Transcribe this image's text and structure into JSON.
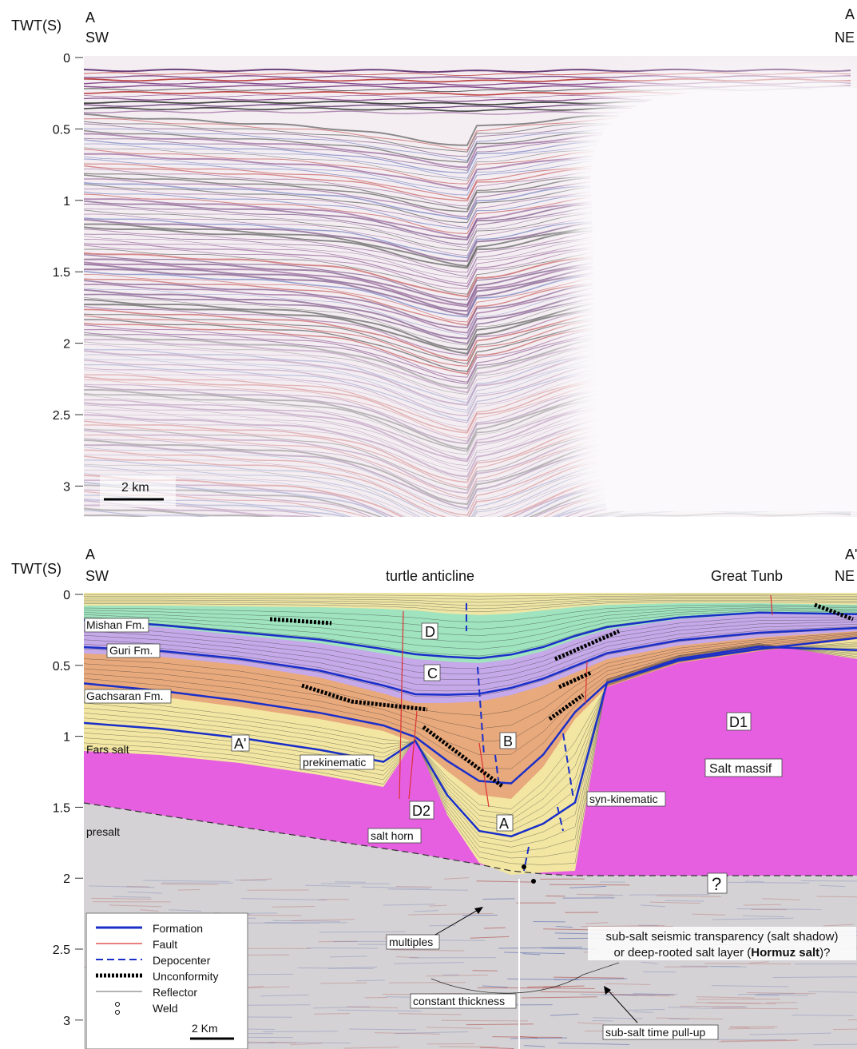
{
  "top_panel": {
    "axis_label": "TWT(S)",
    "left_end": "A",
    "left_dir": "SW",
    "right_end": "A",
    "right_dir": "NE",
    "yticks": [
      0,
      0.5,
      1,
      1.5,
      2,
      2.5,
      3
    ],
    "scale_bar": "2 km"
  },
  "bottom_panel": {
    "axis_label": "TWT(S)",
    "left_end": "A",
    "left_dir": "SW",
    "right_end": "A'",
    "right_dir": "NE",
    "yticks": [
      0,
      0.5,
      1,
      1.5,
      2,
      2.5,
      3
    ],
    "headings": [
      "turtle anticline",
      "Great Tunb"
    ],
    "formations": [
      "Mishan Fm.",
      "Guri Fm.",
      "Gachsaran Fm.",
      "Fars salt",
      "presalt"
    ],
    "labels": [
      "D",
      "C",
      "B",
      "A'",
      "prekinematic",
      "D2",
      "salt horn",
      "A",
      "D1",
      "Salt massif",
      "syn-kinematic",
      "?",
      "multiples",
      "constant thickness",
      "sub-salt time pull-up"
    ],
    "annotation": [
      "sub-salt seismic transparency (salt shadow)",
      "or deep-rooted salt layer (",
      "Hormuz salt",
      ")?"
    ],
    "legend": [
      "Formation",
      "Fault",
      "Depocenter",
      "Unconformity",
      "Reflector",
      "Weld"
    ],
    "scale_bar": "2 Km"
  }
}
